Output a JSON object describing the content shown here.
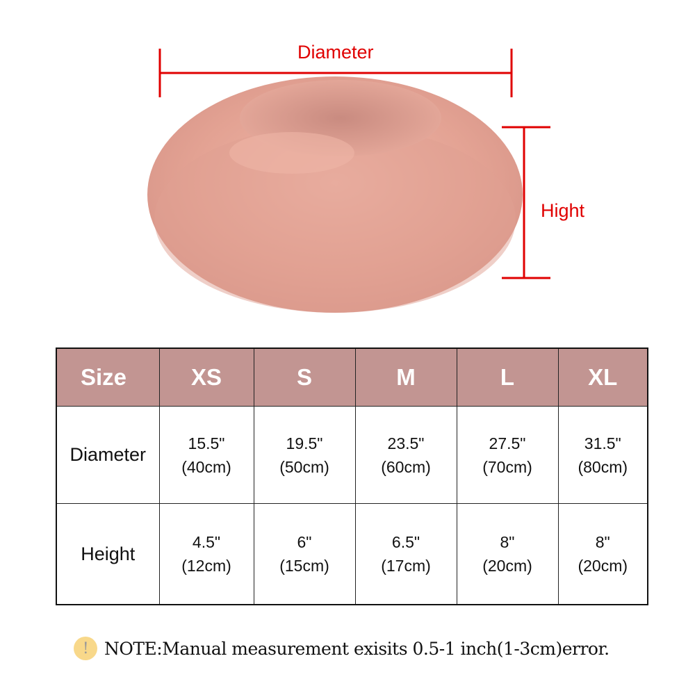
{
  "labels": {
    "diameter": "Diameter",
    "height": "Hight"
  },
  "colors": {
    "header_bg": "#c29592",
    "dimension_lines": "#e00000",
    "product": "#e8a99a"
  },
  "product_image": "pink plush round donut pet bed",
  "table": {
    "headers": [
      "Size",
      "XS",
      "S",
      "M",
      "L",
      "XL"
    ],
    "rows": [
      {
        "label": "Diameter",
        "values": [
          [
            "15.5\"",
            "(40cm)"
          ],
          [
            "19.5\"",
            "(50cm)"
          ],
          [
            "23.5\"",
            "(60cm)"
          ],
          [
            "27.5\"",
            "(70cm)"
          ],
          [
            "31.5\"",
            "(80cm)"
          ]
        ]
      },
      {
        "label": "Height",
        "values": [
          [
            "4.5\"",
            "(12cm)"
          ],
          [
            "6\"",
            "(15cm)"
          ],
          [
            "6.5\"",
            "(17cm)"
          ],
          [
            "8\"",
            "(20cm)"
          ],
          [
            "8\"",
            "(20cm)"
          ]
        ]
      }
    ]
  },
  "note": {
    "icon": "exclamation-icon",
    "icon_glyph": "!",
    "text": "NOTE:Manual measurement exisits 0.5-1 inch(1-3cm)error."
  }
}
